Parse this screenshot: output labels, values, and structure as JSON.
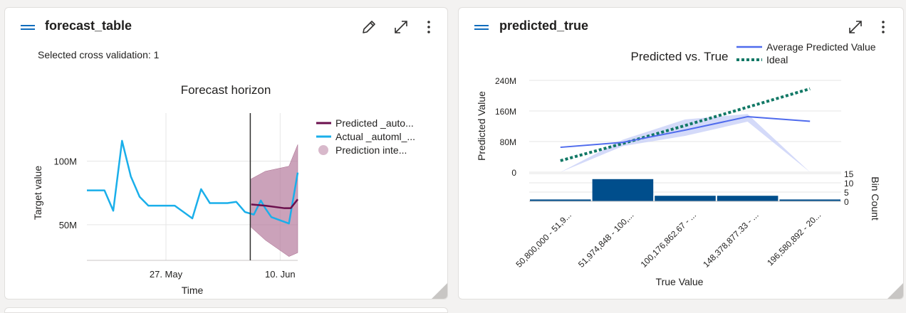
{
  "cards": {
    "forecast": {
      "title": "forecast_table",
      "cv_label": "Selected cross validation: 1",
      "icons": {
        "handle": "drag-handle-icon",
        "edit": "pencil-edit-icon",
        "expand": "expand-arrows-icon",
        "more": "more-vertical-icon"
      }
    },
    "predicted": {
      "title": "predicted_true",
      "icons": {
        "handle": "drag-handle-icon",
        "expand": "expand-arrows-icon",
        "more": "more-vertical-icon"
      }
    }
  },
  "chart_data": [
    {
      "type": "line",
      "title": "Forecast horizon",
      "xlabel": "Time",
      "ylabel": "Target value",
      "x_ticks": [
        "27. May",
        "10. Jun"
      ],
      "y_ticks": [
        "50M",
        "100M"
      ],
      "y_tick_values": [
        50,
        100
      ],
      "ylim": [
        22,
        140
      ],
      "x_range": [
        0,
        24
      ],
      "forecast_origin_x": 18.6,
      "series": [
        {
          "name": "Actual _automl_...",
          "color": "#1aafea",
          "points": [
            [
              0,
              77
            ],
            [
              2,
              77
            ],
            [
              3,
              61
            ],
            [
              4,
              116
            ],
            [
              5,
              88
            ],
            [
              6,
              72
            ],
            [
              7,
              65
            ],
            [
              10,
              65
            ],
            [
              12,
              55
            ],
            [
              13,
              78
            ],
            [
              14,
              67
            ],
            [
              16,
              67
            ],
            [
              17,
              68
            ],
            [
              18,
              60
            ],
            [
              19,
              58
            ],
            [
              19.8,
              69
            ],
            [
              20.3,
              63
            ],
            [
              21,
              56
            ],
            [
              23,
              51
            ],
            [
              24,
              91
            ]
          ]
        },
        {
          "name": "Predicted _auto...",
          "color": "#6b0f4d",
          "points": [
            [
              18.7,
              66
            ],
            [
              20.3,
              65
            ],
            [
              22.5,
              63
            ],
            [
              23.2,
              63
            ],
            [
              24,
              70
            ]
          ]
        },
        {
          "name": "Prediction inte...",
          "color": "#b57a9c",
          "band": [
            [
              18.7,
              86,
              48
            ],
            [
              20.3,
              92,
              38
            ],
            [
              23,
              96,
              25
            ],
            [
              24,
              113,
              28
            ]
          ]
        }
      ],
      "legend": [
        "Predicted _auto...",
        "Actual _automl_...",
        "Prediction inte..."
      ],
      "legend_position": "right"
    },
    {
      "type": "line",
      "title": "Predicted vs. True",
      "xlabel": "True Value",
      "ylabel": "Predicted Value",
      "y_ticks": [
        "0",
        "80M",
        "160M",
        "240M"
      ],
      "y_tick_values": [
        0,
        80,
        160,
        240
      ],
      "ylim": [
        0,
        240
      ],
      "x_categories": [
        "50,800,000 - 51,9...",
        "51,974,848 - 100,...",
        "100,176,862.67 - ...",
        "148,378,877.33 - ...",
        "196,580,892 - 20..."
      ],
      "series": [
        {
          "name": "Average Predicted Value",
          "color": "#4f6bed",
          "values": [
            65,
            78,
            110,
            145,
            133
          ]
        },
        {
          "name": "Ideal",
          "color": "#117865",
          "values": [
            30,
            75,
            122,
            170,
            218
          ]
        }
      ],
      "band": {
        "upper": [
          0,
          85,
          138,
          152,
          0
        ],
        "lower": [
          0,
          68,
          95,
          132,
          0
        ],
        "color": "#c5cdf7"
      },
      "bins": {
        "label": "Bin Count",
        "ticks": [
          "0",
          "5",
          "10",
          "15"
        ],
        "tick_values": [
          0,
          5,
          10,
          15
        ],
        "values": [
          1,
          12,
          3,
          3,
          1
        ],
        "color": "#004e8c"
      },
      "legend_position": "top-right"
    }
  ]
}
